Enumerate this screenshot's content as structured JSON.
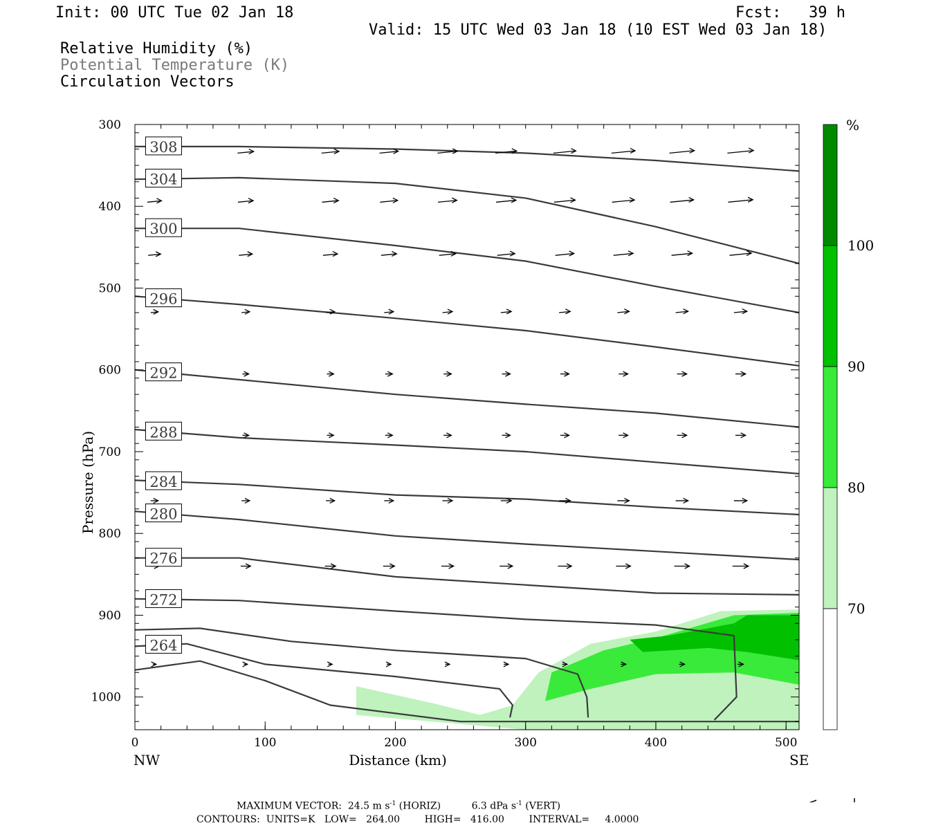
{
  "header": {
    "init": "Init: 00 UTC Tue 02 Jan 18",
    "fcst": "Fcst:   39 h",
    "valid": "Valid: 15 UTC Wed 03 Jan 18 (10 EST Wed 03 Jan 18)",
    "fields": [
      "Relative Humidity (%)",
      "Potential Temperature (K)",
      "Circulation Vectors"
    ]
  },
  "colors": {
    "frame": "#000000",
    "contour": "#3a3a3a",
    "vector": "#000000",
    "grey_text": "#7a7a7a",
    "rh_70": "#bff2bd",
    "rh_80": "#3aea3a",
    "rh_90": "#00c000",
    "rh_100": "#008a00"
  },
  "chart_data": {
    "type": "contour",
    "xlabel": "Distance (km)",
    "ylabel": "Pressure (hPa)",
    "xlim": [
      0,
      510
    ],
    "ylim": [
      1040,
      300
    ],
    "x_ticks": [
      "0",
      "100",
      "200",
      "300",
      "400",
      "500"
    ],
    "y_ticks": [
      "300",
      "400",
      "500",
      "600",
      "700",
      "800",
      "900",
      "1000"
    ],
    "endpoint_left": "NW",
    "endpoint_right": "SE",
    "theta_contours": [
      {
        "label": "308",
        "points": [
          [
            0,
            327
          ],
          [
            80,
            327
          ],
          [
            200,
            330
          ],
          [
            300,
            335
          ],
          [
            400,
            344
          ],
          [
            510,
            357
          ]
        ]
      },
      {
        "label": "304",
        "points": [
          [
            0,
            367
          ],
          [
            80,
            365
          ],
          [
            200,
            372
          ],
          [
            300,
            390
          ],
          [
            400,
            425
          ],
          [
            510,
            470
          ]
        ]
      },
      {
        "label": "300",
        "points": [
          [
            0,
            427
          ],
          [
            80,
            427
          ],
          [
            200,
            448
          ],
          [
            300,
            467
          ],
          [
            400,
            498
          ],
          [
            510,
            530
          ]
        ]
      },
      {
        "label": "296",
        "points": [
          [
            0,
            510
          ],
          [
            80,
            520
          ],
          [
            200,
            537
          ],
          [
            300,
            552
          ],
          [
            400,
            572
          ],
          [
            510,
            595
          ]
        ]
      },
      {
        "label": "292",
        "points": [
          [
            0,
            600
          ],
          [
            80,
            612
          ],
          [
            200,
            630
          ],
          [
            300,
            642
          ],
          [
            400,
            653
          ],
          [
            510,
            670
          ]
        ]
      },
      {
        "label": "288",
        "points": [
          [
            0,
            673
          ],
          [
            80,
            683
          ],
          [
            200,
            692
          ],
          [
            300,
            700
          ],
          [
            400,
            713
          ],
          [
            510,
            727
          ]
        ]
      },
      {
        "label": "284",
        "points": [
          [
            0,
            735
          ],
          [
            80,
            740
          ],
          [
            200,
            753
          ],
          [
            300,
            758
          ],
          [
            400,
            768
          ],
          [
            510,
            777
          ]
        ]
      },
      {
        "label": "280",
        "points": [
          [
            0,
            773
          ],
          [
            80,
            783
          ],
          [
            200,
            803
          ],
          [
            300,
            813
          ],
          [
            400,
            822
          ],
          [
            510,
            832
          ]
        ]
      },
      {
        "label": "276",
        "points": [
          [
            0,
            830
          ],
          [
            80,
            830
          ],
          [
            200,
            853
          ],
          [
            300,
            863
          ],
          [
            400,
            873
          ],
          [
            510,
            875
          ]
        ]
      },
      {
        "label": "272",
        "points": [
          [
            0,
            880
          ],
          [
            80,
            882
          ],
          [
            200,
            895
          ],
          [
            300,
            905
          ],
          [
            400,
            912
          ],
          [
            460,
            925
          ],
          [
            462,
            1000
          ],
          [
            445,
            1028
          ]
        ]
      },
      {
        "label": "",
        "points": [
          [
            0,
            918
          ],
          [
            50,
            916
          ],
          [
            120,
            932
          ],
          [
            200,
            943
          ],
          [
            300,
            953
          ],
          [
            340,
            972
          ],
          [
            347,
            1000
          ],
          [
            348,
            1025
          ]
        ]
      },
      {
        "label": "264",
        "points": [
          [
            0,
            938
          ],
          [
            40,
            935
          ],
          [
            100,
            960
          ],
          [
            200,
            975
          ],
          [
            280,
            990
          ],
          [
            290,
            1010
          ],
          [
            288,
            1025
          ]
        ]
      },
      {
        "label": "",
        "points": [
          [
            0,
            967
          ],
          [
            50,
            956
          ],
          [
            100,
            980
          ],
          [
            150,
            1010
          ],
          [
            250,
            1030
          ],
          [
            510,
            1030
          ]
        ]
      }
    ],
    "rh_legend": {
      "unit": "%",
      "levels": [
        "70",
        "80",
        "90",
        "100"
      ]
    },
    "rh_regions": [
      {
        "level": 70,
        "points": [
          [
            170,
            987
          ],
          [
            230,
            1008
          ],
          [
            265,
            1022
          ],
          [
            290,
            1010
          ],
          [
            310,
            970
          ],
          [
            350,
            935
          ],
          [
            400,
            920
          ],
          [
            450,
            895
          ],
          [
            510,
            893
          ],
          [
            510,
            1040
          ],
          [
            300,
            1040
          ],
          [
            170,
            1022
          ]
        ]
      },
      {
        "level": 80,
        "points": [
          [
            315,
            1005
          ],
          [
            320,
            970
          ],
          [
            360,
            943
          ],
          [
            400,
            928
          ],
          [
            460,
            900
          ],
          [
            510,
            897
          ],
          [
            510,
            985
          ],
          [
            460,
            970
          ],
          [
            400,
            972
          ],
          [
            350,
            990
          ]
        ]
      },
      {
        "level": 90,
        "points": [
          [
            380,
            930
          ],
          [
            410,
            925
          ],
          [
            460,
            910
          ],
          [
            470,
            900
          ],
          [
            510,
            900
          ],
          [
            510,
            955
          ],
          [
            470,
            945
          ],
          [
            440,
            940
          ],
          [
            390,
            945
          ]
        ]
      }
    ]
  },
  "footer": {
    "line1_a": "MAXIMUM VECTOR:  24.5 m s",
    "line1_sup1": "-1",
    "line1_b": " (HORIZ)          6.3 dPa s",
    "line1_sup2": "-1",
    "line1_c": " (VERT)",
    "line2": "CONTOURS:  UNITS=K   LOW=   264.00        HIGH=   416.00        INTERVAL=     4.0000"
  }
}
